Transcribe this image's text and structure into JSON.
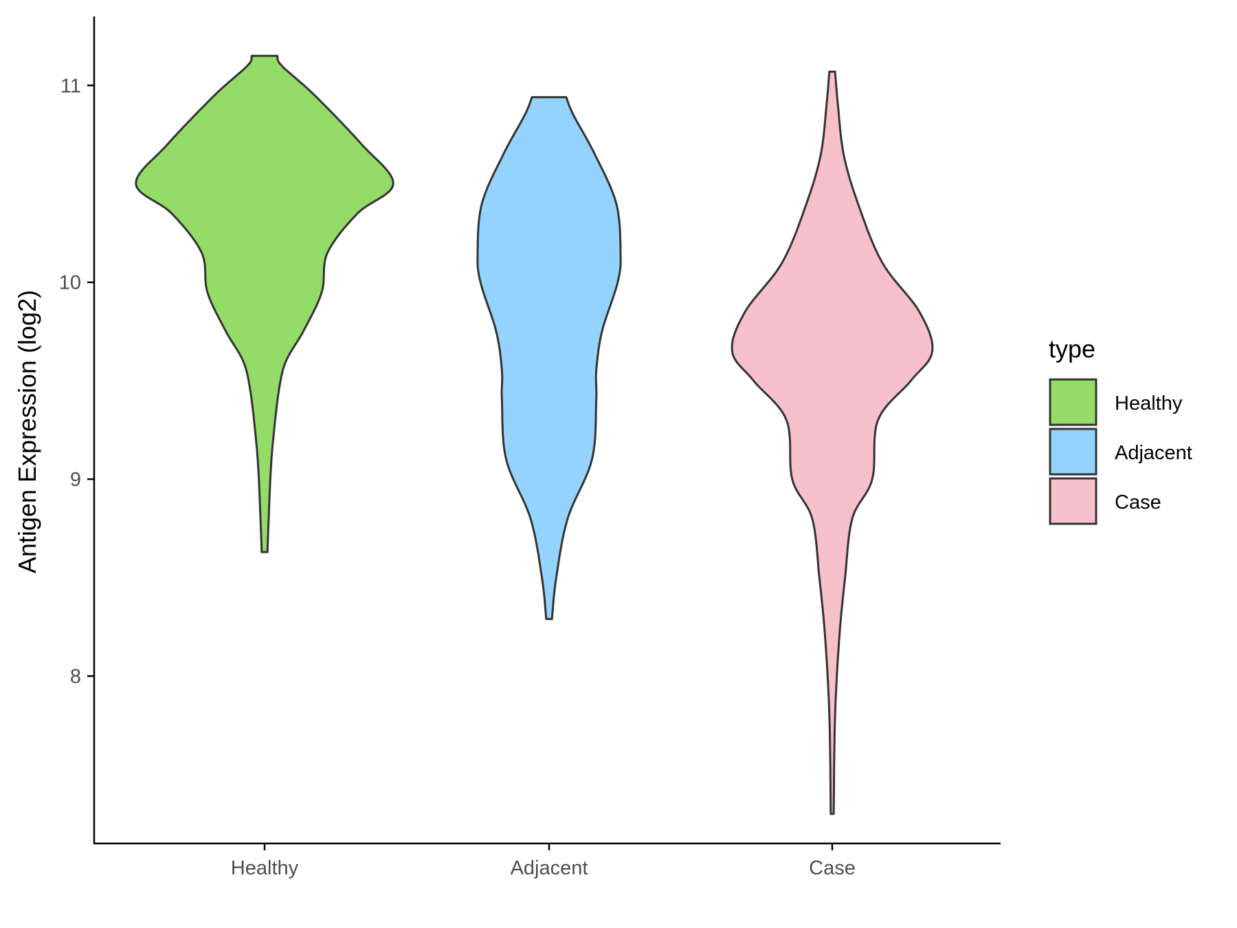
{
  "chart_data": {
    "type": "violin",
    "title": "",
    "xlabel": "",
    "ylabel": "Antigen Expression (log2)",
    "categories": [
      "Healthy",
      "Adjacent",
      "Case"
    ],
    "ylim": [
      7.15,
      11.35
    ],
    "yticks": [
      8,
      9,
      10,
      11
    ],
    "grid": false,
    "legend": {
      "title": "type",
      "position": "right",
      "entries": [
        "Healthy",
        "Adjacent",
        "Case"
      ]
    },
    "colors": {
      "Healthy": "#93dc68",
      "Adjacent": "#93d3fd",
      "Case": "#f8c0cb",
      "outline": "#333333"
    },
    "series": [
      {
        "category": "Healthy",
        "min": 8.63,
        "max": 11.15,
        "density_profile": [
          [
            8.63,
            0.02
          ],
          [
            9.0,
            0.04
          ],
          [
            9.2,
            0.06
          ],
          [
            9.45,
            0.1
          ],
          [
            9.6,
            0.15
          ],
          [
            9.75,
            0.27
          ],
          [
            9.95,
            0.4
          ],
          [
            10.15,
            0.44
          ],
          [
            10.35,
            0.65
          ],
          [
            10.5,
            0.9
          ],
          [
            10.7,
            0.68
          ],
          [
            10.95,
            0.35
          ],
          [
            11.1,
            0.12
          ],
          [
            11.15,
            0.09
          ]
        ]
      },
      {
        "category": "Adjacent",
        "min": 8.29,
        "max": 10.94,
        "density_profile": [
          [
            8.29,
            0.02
          ],
          [
            8.5,
            0.05
          ],
          [
            8.8,
            0.13
          ],
          [
            9.1,
            0.3
          ],
          [
            9.4,
            0.33
          ],
          [
            9.55,
            0.33
          ],
          [
            9.75,
            0.37
          ],
          [
            10.0,
            0.48
          ],
          [
            10.15,
            0.5
          ],
          [
            10.4,
            0.47
          ],
          [
            10.65,
            0.32
          ],
          [
            10.85,
            0.17
          ],
          [
            10.94,
            0.12
          ]
        ]
      },
      {
        "category": "Case",
        "min": 7.3,
        "max": 11.07,
        "density_profile": [
          [
            7.3,
            0.01
          ],
          [
            7.8,
            0.02
          ],
          [
            8.2,
            0.05
          ],
          [
            8.5,
            0.09
          ],
          [
            8.8,
            0.14
          ],
          [
            9.0,
            0.28
          ],
          [
            9.3,
            0.32
          ],
          [
            9.5,
            0.55
          ],
          [
            9.65,
            0.7
          ],
          [
            9.85,
            0.61
          ],
          [
            10.1,
            0.35
          ],
          [
            10.4,
            0.18
          ],
          [
            10.65,
            0.08
          ],
          [
            10.9,
            0.04
          ],
          [
            11.07,
            0.02
          ]
        ]
      }
    ]
  }
}
